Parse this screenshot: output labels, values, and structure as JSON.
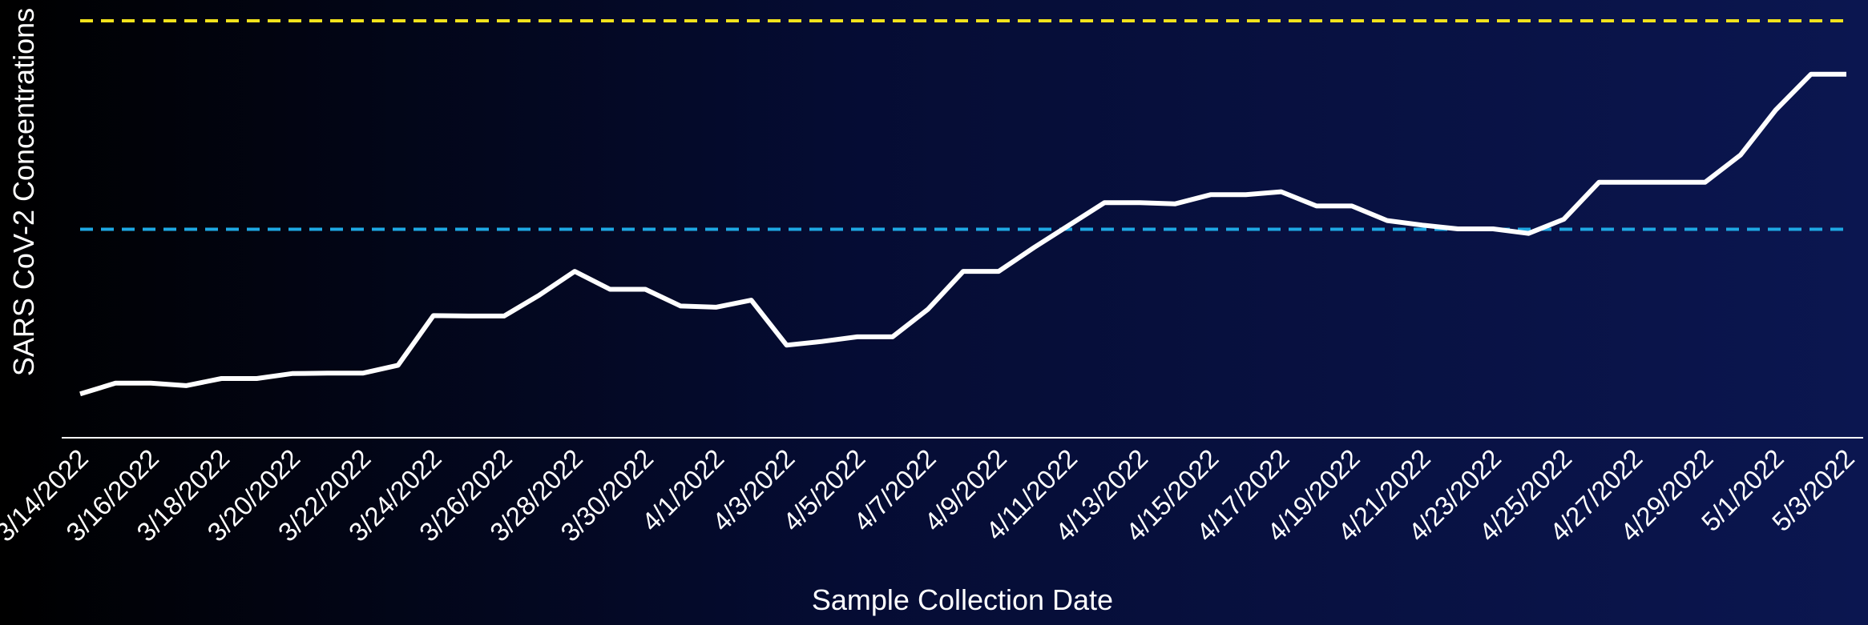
{
  "chart_data": {
    "type": "line",
    "x_label": "Sample Collection Date",
    "y_label": "SARS CoV-2 Concentrations",
    "categories": [
      "3/14/2022",
      null,
      "3/16/2022",
      null,
      "3/18/2022",
      null,
      "3/20/2022",
      null,
      "3/22/2022",
      null,
      "3/24/2022",
      null,
      "3/26/2022",
      null,
      "3/28/2022",
      null,
      "3/30/2022",
      null,
      "4/1/2022",
      null,
      "4/3/2022",
      null,
      "4/5/2022",
      null,
      "4/7/2022",
      null,
      "4/9/2022",
      null,
      "4/11/2022",
      null,
      "4/13/2022",
      null,
      "4/15/2022",
      null,
      "4/17/2022",
      null,
      "4/19/2022",
      null,
      "4/21/2022",
      null,
      "4/23/2022",
      null,
      "4/25/2022",
      null,
      "4/27/2022",
      null,
      "4/29/2022",
      null,
      "5/1/2022",
      null,
      "5/3/2022"
    ],
    "series": [
      {
        "color": "#ffffff",
        "values": [
          10.5,
          13.1,
          13.1,
          12.5,
          14.2,
          14.2,
          15.4,
          15.5,
          15.5,
          17.4,
          29.3,
          29.2,
          29.2,
          34.2,
          39.9,
          35.6,
          35.6,
          31.6,
          31.3,
          33.0,
          22.2,
          23.1,
          24.2,
          24.2,
          30.8,
          39.9,
          39.9,
          45.6,
          51.0,
          56.4,
          56.4,
          56.1,
          58.3,
          58.3,
          59.0,
          55.6,
          55.6,
          52.1,
          51.0,
          50.1,
          50.1,
          49.0,
          52.4,
          61.3,
          61.3,
          61.3,
          61.3,
          67.8,
          78.6,
          87.2,
          87.2
        ]
      }
    ],
    "reference_lines": [
      {
        "value": 100,
        "color": "#f2e21c"
      },
      {
        "value": 50,
        "color": "#1ea8e3"
      }
    ],
    "ylim": [
      0,
      105
    ]
  }
}
